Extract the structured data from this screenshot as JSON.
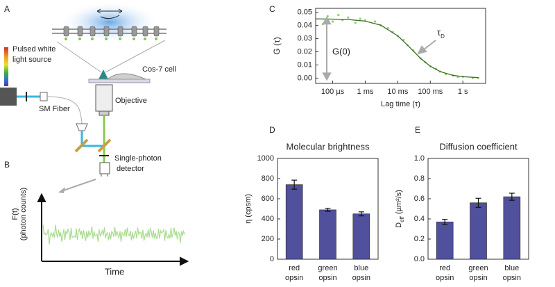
{
  "panel_labels": [
    "A",
    "B",
    "C",
    "D",
    "E"
  ],
  "diagram": {
    "light_source": [
      "Pulsed white",
      "light source"
    ],
    "cell": "Cos-7 cell",
    "fiber": "SM Fiber",
    "objective": "Objective",
    "detector": [
      "Single-photon",
      "detector"
    ],
    "trace_y_label": [
      "F(t)",
      "(photon counts)"
    ],
    "trace_x_label": "Time"
  },
  "chart_data": [
    {
      "type": "line",
      "xscale": "log",
      "y_label": "G (τ)",
      "x_label": "Lag time (τ)",
      "annotations": {
        "g0": "G(0)",
        "tau": [
          "τ",
          "D"
        ]
      },
      "xlim": [
        3e-05,
        5
      ],
      "xticks": [
        {
          "value": 0.0001,
          "label": "100 µs"
        },
        {
          "value": 0.001,
          "label": "1 ms"
        },
        {
          "value": 0.01,
          "label": "10 ms"
        },
        {
          "value": 0.1,
          "label": "100 ms"
        },
        {
          "value": 1,
          "label": "1 s"
        }
      ],
      "ylim": [
        -0.004,
        0.053
      ],
      "yticks": [
        {
          "value": 0,
          "label": "0.00"
        },
        {
          "value": 0.01,
          "label": "0.01"
        },
        {
          "value": 0.02,
          "label": "0.02"
        },
        {
          "value": 0.03,
          "label": "0.03"
        },
        {
          "value": 0.04,
          "label": "0.04"
        },
        {
          "value": 0.05,
          "label": "0.05"
        }
      ],
      "series": [
        {
          "style": "points",
          "color": "#8fd36a",
          "x": [
            5e-05,
            7e-05,
            0.0001,
            0.00015,
            0.0002,
            0.0003,
            0.0005,
            0.0007,
            0.001,
            0.002,
            0.003,
            0.005,
            0.007,
            0.01,
            0.015,
            0.02,
            0.03,
            0.05,
            0.07,
            0.1,
            0.15,
            0.2,
            0.3,
            0.5,
            0.7,
            1,
            2,
            3
          ],
          "values": [
            0.041,
            0.047,
            0.043,
            0.048,
            0.044,
            0.046,
            0.042,
            0.045,
            0.044,
            0.043,
            0.04,
            0.038,
            0.035,
            0.032,
            0.029,
            0.025,
            0.021,
            0.015,
            0.012,
            0.009,
            0.007,
            0.005,
            0.003,
            0.002,
            0.001,
            0.001,
            0,
            0
          ]
        },
        {
          "style": "line",
          "color": "#3a6a2a",
          "x": [
            3e-05,
            0.0001,
            0.0003,
            0.001,
            0.003,
            0.01,
            0.02,
            0.05,
            0.1,
            0.2,
            0.5,
            1,
            3
          ],
          "values": [
            0.045,
            0.0448,
            0.0445,
            0.0433,
            0.0402,
            0.0321,
            0.025,
            0.015,
            0.009,
            0.005,
            0.0021,
            0.0011,
            0.0004
          ]
        }
      ]
    },
    {
      "type": "bar",
      "title": "Molecular brightness",
      "y_label": [
        "η (cpsm)"
      ],
      "color": "#50509c",
      "categories": [
        [
          "red",
          "opsin"
        ],
        [
          "green",
          "opsin"
        ],
        [
          "blue",
          "opsin"
        ]
      ],
      "values": [
        740,
        490,
        450
      ],
      "errors": [
        45,
        15,
        20
      ],
      "ylim": [
        0,
        1000
      ],
      "yticks": [
        0,
        200,
        400,
        600,
        800,
        1000
      ]
    },
    {
      "type": "bar",
      "title": "Diffusion coefficient",
      "y_label": [
        "D",
        "eff",
        " (µm²/s)"
      ],
      "color": "#50509c",
      "categories": [
        [
          "red",
          "opsin"
        ],
        [
          "green",
          "opsin"
        ],
        [
          "blue",
          "opsin"
        ]
      ],
      "values": [
        0.37,
        0.56,
        0.62
      ],
      "errors": [
        0.025,
        0.045,
        0.035
      ],
      "ylim": [
        0,
        1
      ],
      "yticks": [
        {
          "value": 0,
          "label": "0.0"
        },
        {
          "value": 0.2,
          "label": "0.2"
        },
        {
          "value": 0.4,
          "label": "0.4"
        },
        {
          "value": 0.6,
          "label": "0.6"
        },
        {
          "value": 0.8,
          "label": "0.8"
        },
        {
          "value": 1,
          "label": "1.0"
        }
      ]
    }
  ]
}
